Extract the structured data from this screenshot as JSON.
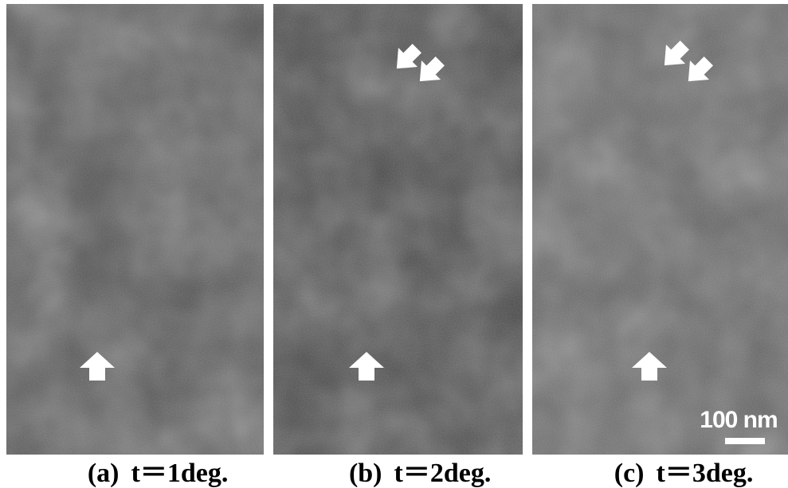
{
  "figure": {
    "panels": [
      {
        "label": "(a)",
        "caption": "t＝1deg."
      },
      {
        "label": "(b)",
        "caption": "t＝2deg."
      },
      {
        "label": "(c)",
        "caption": "t＝3deg."
      }
    ],
    "scale_bar": "100 nm"
  }
}
